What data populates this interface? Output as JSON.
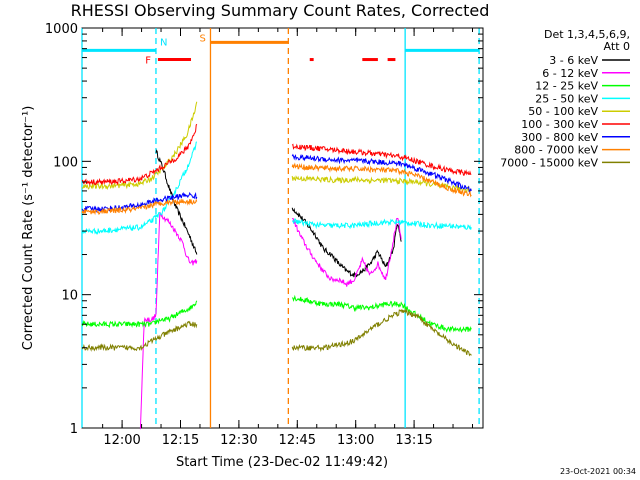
{
  "chart_data": {
    "type": "line",
    "title": "RHESSI Observing Summary Count Rates, Corrected",
    "xlabel": "Start Time (23-Dec-02 11:49:42)",
    "ylabel": "Corrected Count Rate (s⁻¹ detector⁻¹)",
    "yscale": "log",
    "ylim": [
      1,
      1000
    ],
    "xlim_minutes": [
      0,
      103
    ],
    "x_tick_labels": [
      "12:00",
      "12:15",
      "12:30",
      "12:45",
      "13:00",
      "13:15"
    ],
    "x_tick_minutes": [
      10.3,
      25.3,
      40.3,
      55.3,
      70.3,
      85.3
    ],
    "y_tick_labels": [
      "1",
      "10",
      "100",
      "1000"
    ],
    "y_tick_values": [
      1,
      10,
      100,
      1000
    ],
    "legend_title": [
      "Det 1,3,4,5,6,9,",
      "Att 0"
    ],
    "series": [
      {
        "name": "3 - 6 keV",
        "color": "#000000",
        "segments": [
          {
            "t": [
              19,
              19.8,
              21,
              22.5,
              24,
              26,
              28,
              29.5
            ],
            "y": [
              120,
              105,
              85,
              62,
              46,
              35,
              26,
              20
            ]
          },
          {
            "t": [
              54,
              57,
              60,
              62,
              64,
              66,
              68,
              70,
              72,
              74,
              76,
              78,
              80,
              81,
              82
            ],
            "y": [
              45,
              36,
              28,
              22,
              20,
              17,
              15,
              14,
              15,
              17,
              21,
              16,
              22,
              35,
              25
            ]
          }
        ]
      },
      {
        "name": "6 - 12 keV",
        "color": "#ff00ff",
        "segments": [
          {
            "t": [
              15,
              16,
              17,
              18,
              19,
              20,
              21,
              22,
              23,
              24,
              25,
              26,
              27,
              28,
              29.5
            ],
            "y": [
              1,
              6.5,
              6.5,
              6.5,
              7,
              42,
              38,
              36,
              33,
              30,
              27,
              24,
              19,
              17,
              18
            ]
          },
          {
            "t": [
              54,
              56,
              58,
              60,
              62,
              64,
              66,
              68,
              70,
              72,
              74,
              76,
              78,
              80,
              81,
              82
            ],
            "y": [
              38,
              28,
              22,
              18,
              15,
              13,
              13,
              12,
              13,
              18,
              14,
              17,
              13,
              26,
              38,
              26
            ]
          }
        ]
      },
      {
        "name": "12 - 25 keV",
        "color": "#00ff00",
        "segments": [
          {
            "t": [
              0,
              5,
              10,
              15,
              18,
              20,
              22,
              24,
              26,
              28,
              29.5
            ],
            "y": [
              6,
              6,
              6,
              6,
              6,
              6.5,
              6.5,
              7,
              7.5,
              8,
              9
            ]
          },
          {
            "t": [
              54,
              58,
              62,
              66,
              70,
              74,
              78,
              82,
              86,
              90,
              94,
              98,
              100
            ],
            "y": [
              9.5,
              9,
              8.5,
              8.5,
              8,
              8,
              8.5,
              8.5,
              7,
              6,
              5.5,
              5.5,
              5.5
            ]
          }
        ]
      },
      {
        "name": "25 - 50 keV",
        "color": "#00ffff",
        "segments": [
          {
            "t": [
              0,
              5,
              10,
              15,
              18,
              21,
              24,
              27,
              29,
              29.5
            ],
            "y": [
              30,
              30,
              31,
              32,
              36,
              43,
              60,
              90,
              125,
              140
            ]
          },
          {
            "t": [
              54,
              58,
              62,
              66,
              70,
              74,
              78,
              82,
              86,
              90,
              94,
              98,
              100
            ],
            "y": [
              36,
              34,
              33,
              33,
              33,
              34,
              35,
              35,
              34,
              33,
              33,
              32,
              32
            ]
          }
        ]
      },
      {
        "name": "50 - 100 keV",
        "color": "#cccc00",
        "segments": [
          {
            "t": [
              0,
              5,
              10,
              15,
              18,
              21,
              24,
              27,
              29,
              29.5
            ],
            "y": [
              65,
              65,
              66,
              68,
              75,
              90,
              115,
              160,
              240,
              280
            ]
          },
          {
            "t": [
              54,
              58,
              62,
              66,
              70,
              74,
              78,
              82,
              86,
              90,
              94,
              98,
              100
            ],
            "y": [
              75,
              74,
              73,
              72,
              73,
              72,
              72,
              71,
              70,
              67,
              64,
              62,
              62
            ]
          }
        ]
      },
      {
        "name": "100 - 300 keV",
        "color": "#ff0000",
        "segments": [
          {
            "t": [
              0,
              5,
              10,
              15,
              18,
              21,
              24,
              27,
              29,
              29.5
            ],
            "y": [
              70,
              70,
              71,
              74,
              82,
              92,
              105,
              125,
              165,
              190
            ]
          },
          {
            "t": [
              54,
              58,
              62,
              66,
              70,
              74,
              78,
              82,
              86,
              90,
              94,
              98,
              100
            ],
            "y": [
              130,
              127,
              124,
              121,
              118,
              115,
              112,
              108,
              100,
              92,
              86,
              82,
              80
            ]
          }
        ]
      },
      {
        "name": "300 - 800 keV",
        "color": "#0000ff",
        "segments": [
          {
            "t": [
              0,
              5,
              10,
              15,
              18,
              21,
              24,
              27,
              29,
              29.5
            ],
            "y": [
              44,
              44,
              45,
              47,
              50,
              52,
              54,
              56,
              55,
              54
            ]
          },
          {
            "t": [
              54,
              58,
              62,
              66,
              70,
              74,
              78,
              82,
              86,
              90,
              94,
              98,
              100
            ],
            "y": [
              108,
              106,
              104,
              102,
              101,
              100,
              98,
              96,
              88,
              80,
              72,
              64,
              60
            ]
          }
        ]
      },
      {
        "name": "800 - 7000 keV",
        "color": "#ff8000",
        "segments": [
          {
            "t": [
              0,
              5,
              10,
              15,
              18,
              21,
              24,
              27,
              29.5
            ],
            "y": [
              42,
              42,
              43,
              44,
              47,
              49,
              50,
              50,
              50
            ]
          },
          {
            "t": [
              54,
              58,
              62,
              66,
              70,
              74,
              78,
              82,
              86,
              90,
              94,
              98,
              100
            ],
            "y": [
              92,
              90,
              89,
              88,
              88,
              87,
              86,
              84,
              78,
              70,
              63,
              58,
              56
            ]
          }
        ]
      },
      {
        "name": "7000 - 15000 keV",
        "color": "#808000",
        "segments": [
          {
            "t": [
              0,
              5,
              10,
              15,
              18,
              21,
              24,
              27,
              29.5
            ],
            "y": [
              4,
              4,
              4,
              4,
              4.5,
              5,
              5.5,
              6,
              6
            ]
          },
          {
            "t": [
              54,
              58,
              62,
              66,
              70,
              74,
              78,
              82,
              86,
              90,
              94,
              98,
              100
            ],
            "y": [
              4,
              4,
              4,
              4.2,
              4.5,
              5.5,
              6.5,
              7.5,
              7,
              5.5,
              4.5,
              3.8,
              3.5
            ]
          }
        ]
      }
    ],
    "intervals": [
      {
        "flag": "N",
        "color": "#00e5ff",
        "style": "solid",
        "y_position": 680,
        "t": [
          0,
          19
        ]
      },
      {
        "flag": "N",
        "color": "#00e5ff",
        "style": "solid",
        "y_position": 680,
        "t": [
          83,
          102
        ]
      },
      {
        "flag": "F",
        "color": "#ff0000",
        "style": "solid",
        "y_position": 580,
        "t": [
          19.5,
          28
        ]
      },
      {
        "flag": "F",
        "color": "#ff0000",
        "style": "solid",
        "y_position": 580,
        "t": [
          58.5,
          59.5
        ]
      },
      {
        "flag": "F",
        "color": "#ff0000",
        "style": "solid",
        "y_position": 580,
        "t": [
          72,
          76
        ]
      },
      {
        "flag": "F",
        "color": "#ff0000",
        "style": "solid",
        "y_position": 580,
        "t": [
          78.5,
          80.5
        ]
      },
      {
        "flag": "S",
        "color": "#ff8000",
        "style": "solid",
        "y_position": 780,
        "t": [
          33,
          53
        ]
      }
    ],
    "vertical_markers": [
      {
        "t": 0,
        "color": "#00e5ff",
        "style": "solid"
      },
      {
        "t": 19,
        "color": "#00e5ff",
        "style": "dashed"
      },
      {
        "t": 33,
        "color": "#ff8000",
        "style": "solid"
      },
      {
        "t": 53,
        "color": "#ff8000",
        "style": "dashed"
      },
      {
        "t": 83,
        "color": "#00e5ff",
        "style": "solid"
      },
      {
        "t": 102,
        "color": "#00e5ff",
        "style": "dashed"
      }
    ],
    "flag_labels": [
      {
        "text": "N",
        "t": 21,
        "y_position": 790,
        "color": "#00e5ff"
      },
      {
        "text": "F",
        "t": 17,
        "y_position": 580,
        "color": "#ff0000"
      },
      {
        "text": "S",
        "t": 31,
        "y_position": 850,
        "color": "#ff8000"
      }
    ]
  },
  "footer_timestamp": "23-Oct-2021 00:34"
}
